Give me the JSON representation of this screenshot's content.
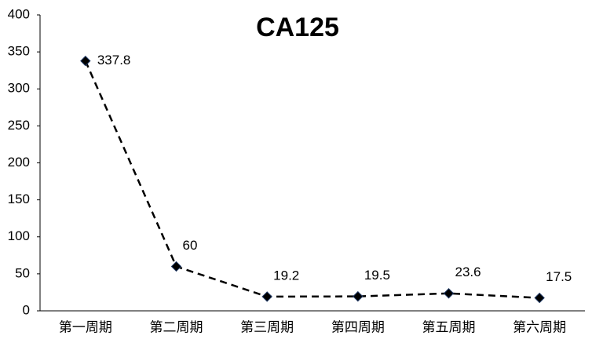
{
  "chart_data": {
    "type": "line",
    "title": "CA125",
    "categories": [
      "第一周期",
      "第二周期",
      "第三周期",
      "第四周期",
      "第五周期",
      "第六周期"
    ],
    "series": [
      {
        "name": "CA125",
        "color": "#000000",
        "values": [
          337.8,
          60,
          19.2,
          19.5,
          23.6,
          17.5
        ]
      }
    ],
    "ylim": [
      0,
      400
    ],
    "yticks": [
      0,
      50,
      100,
      150,
      200,
      250,
      300,
      350,
      400
    ],
    "grid": false
  }
}
